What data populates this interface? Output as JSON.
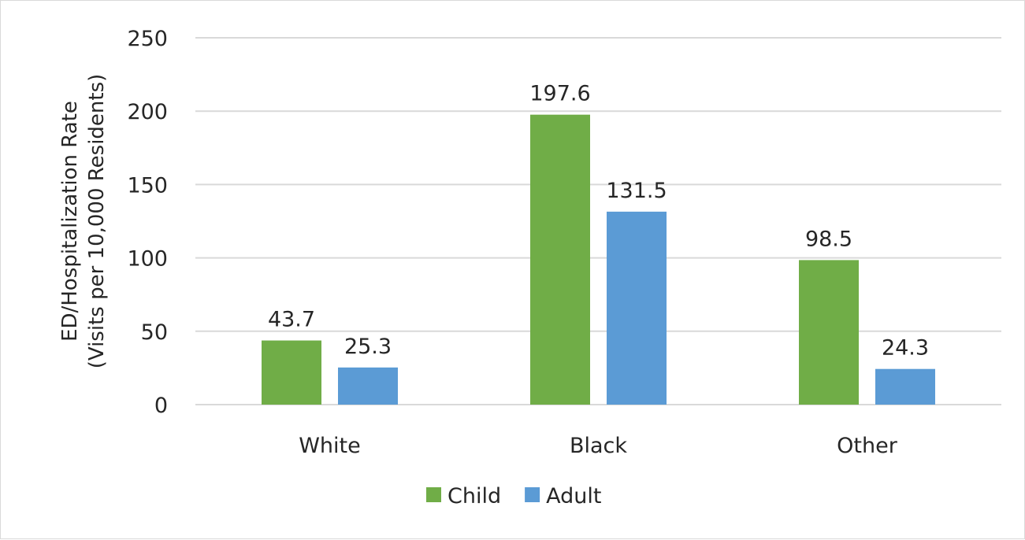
{
  "chart_data": {
    "type": "bar",
    "categories": [
      "White",
      "Black",
      "Other"
    ],
    "series": [
      {
        "name": "Child",
        "values": [
          43.7,
          197.6,
          98.5
        ],
        "color": "#70ad47"
      },
      {
        "name": "Adult",
        "values": [
          25.3,
          131.5,
          24.3
        ],
        "color": "#5b9bd5"
      }
    ],
    "ylabel_line1": "ED/Hospitalization Rate",
    "ylabel_line2": "(Visits per 10,000 Residents)",
    "ylim": [
      0,
      250
    ],
    "yticks": [
      0,
      50,
      100,
      150,
      200,
      250
    ],
    "grid": true,
    "gridline_color": "#d9d9d9",
    "legend_position": "bottom"
  }
}
